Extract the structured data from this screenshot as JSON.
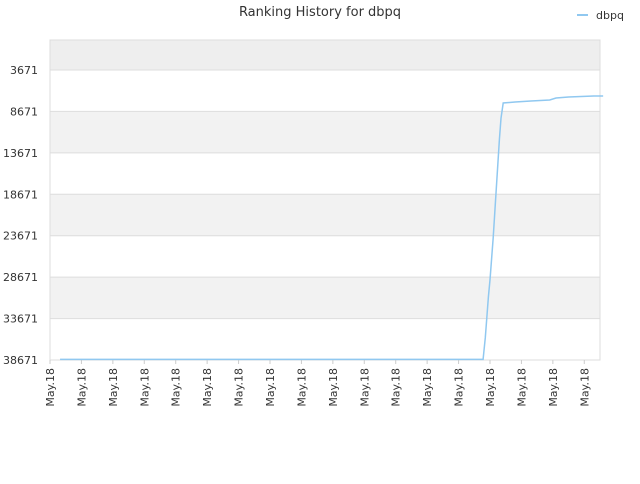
{
  "chart_data": {
    "type": "line",
    "title": "Ranking History for dbpq",
    "x": [
      0.32,
      13.78,
      13.85,
      13.9,
      13.95,
      14.0,
      14.05,
      14.1,
      14.15,
      14.2,
      14.25,
      14.3,
      14.35,
      14.42,
      14.8,
      15.3,
      15.9,
      16.1,
      16.5,
      17.3,
      17.6
    ],
    "series": [
      {
        "name": "dbpq",
        "color": "#90c8f0",
        "values": [
          38600,
          38600,
          36000,
          33500,
          31000,
          29000,
          26500,
          24000,
          21000,
          18000,
          15000,
          12000,
          9500,
          7650,
          7530,
          7410,
          7290,
          7050,
          6930,
          6810,
          6810
        ]
      }
    ],
    "xlim": [
      0,
      17.5
    ],
    "xticks": [
      {
        "value": 0,
        "label": "May.18"
      },
      {
        "value": 1,
        "label": "May.18"
      },
      {
        "value": 2,
        "label": "May.18"
      },
      {
        "value": 3,
        "label": "May.18"
      },
      {
        "value": 4,
        "label": "May.18"
      },
      {
        "value": 5,
        "label": "May.18"
      },
      {
        "value": 6,
        "label": "May.18"
      },
      {
        "value": 7,
        "label": "May.18"
      },
      {
        "value": 8,
        "label": "May.18"
      },
      {
        "value": 9,
        "label": "May.18"
      },
      {
        "value": 10,
        "label": "May.18"
      },
      {
        "value": 11,
        "label": "May.18"
      },
      {
        "value": 12,
        "label": "May.18"
      },
      {
        "value": 13,
        "label": "May.18"
      },
      {
        "value": 14,
        "label": "May.18"
      },
      {
        "value": 15,
        "label": "May.18"
      },
      {
        "value": 16,
        "label": "May.18"
      },
      {
        "value": 17,
        "label": "May.18"
      }
    ],
    "ylim": [
      38671,
      50
    ],
    "yticks": [
      3671,
      8671,
      13671,
      18671,
      23671,
      28671,
      33671,
      38671
    ],
    "grid": true,
    "legend": "top-right"
  }
}
